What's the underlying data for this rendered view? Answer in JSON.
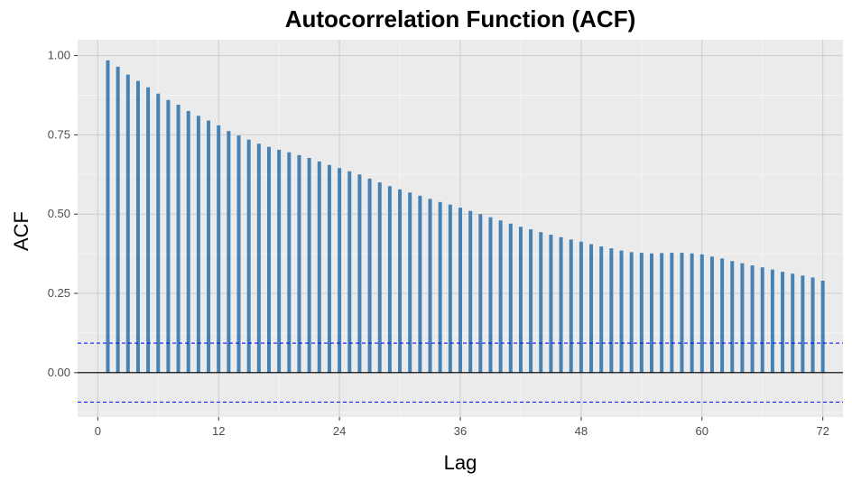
{
  "chart_data": {
    "type": "bar",
    "title": "Autocorrelation Function (ACF)",
    "xlabel": "Lag",
    "ylabel": "ACF",
    "xlim": [
      -2,
      74
    ],
    "ylim": [
      -0.14,
      1.05
    ],
    "x_ticks": [
      0,
      12,
      24,
      36,
      48,
      60,
      72
    ],
    "y_ticks": [
      0.0,
      0.25,
      0.5,
      0.75,
      1.0
    ],
    "y_tick_labels": [
      "0.00",
      "0.25",
      "0.50",
      "0.75",
      "1.00"
    ],
    "grid": true,
    "confidence_bound": 0.093,
    "colors": {
      "bars": "#4682b4",
      "confidence": "#0000ff",
      "panel": "#ebebeb",
      "grid": "#cccccc",
      "zero_line": "#000000"
    },
    "lags": [
      1,
      2,
      3,
      4,
      5,
      6,
      7,
      8,
      9,
      10,
      11,
      12,
      13,
      14,
      15,
      16,
      17,
      18,
      19,
      20,
      21,
      22,
      23,
      24,
      25,
      26,
      27,
      28,
      29,
      30,
      31,
      32,
      33,
      34,
      35,
      36,
      37,
      38,
      39,
      40,
      41,
      42,
      43,
      44,
      45,
      46,
      47,
      48,
      49,
      50,
      51,
      52,
      53,
      54,
      55,
      56,
      57,
      58,
      59,
      60,
      61,
      62,
      63,
      64,
      65,
      66,
      67,
      68,
      69,
      70,
      71,
      72
    ],
    "values": [
      0.985,
      0.965,
      0.94,
      0.92,
      0.9,
      0.88,
      0.86,
      0.845,
      0.825,
      0.81,
      0.795,
      0.78,
      0.762,
      0.748,
      0.735,
      0.722,
      0.712,
      0.703,
      0.695,
      0.686,
      0.677,
      0.666,
      0.655,
      0.645,
      0.635,
      0.625,
      0.612,
      0.6,
      0.588,
      0.578,
      0.568,
      0.558,
      0.548,
      0.538,
      0.53,
      0.52,
      0.51,
      0.5,
      0.49,
      0.48,
      0.47,
      0.46,
      0.452,
      0.443,
      0.435,
      0.427,
      0.42,
      0.413,
      0.405,
      0.398,
      0.392,
      0.385,
      0.38,
      0.378,
      0.376,
      0.377,
      0.378,
      0.378,
      0.376,
      0.373,
      0.366,
      0.36,
      0.352,
      0.345,
      0.338,
      0.332,
      0.325,
      0.318,
      0.312,
      0.306,
      0.3,
      0.29
    ]
  }
}
